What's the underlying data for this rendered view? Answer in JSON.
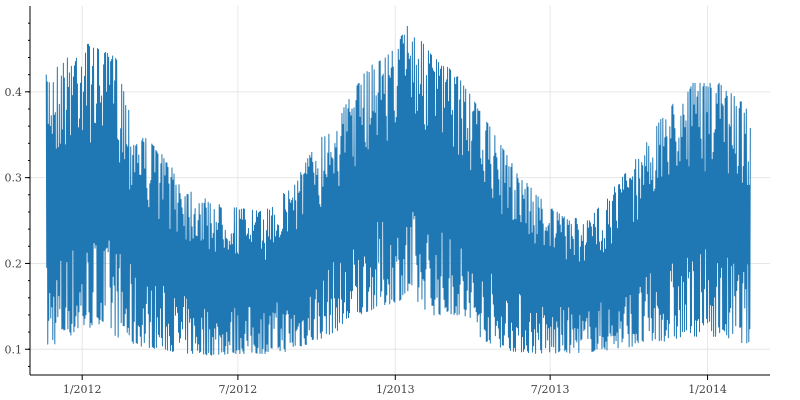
{
  "chart_data": {
    "type": "line",
    "title": "",
    "xlabel": "",
    "ylabel": "",
    "x_start": "2011-11-20",
    "x_end": "2014-02-20",
    "xlim": [
      "2011-11-01",
      "2014-03-15"
    ],
    "ylim": [
      0.07,
      0.5
    ],
    "x_ticks": [
      {
        "date": "2012-01-01",
        "label": "1/2012"
      },
      {
        "date": "2012-07-01",
        "label": "7/2012"
      },
      {
        "date": "2013-01-01",
        "label": "1/2013"
      },
      {
        "date": "2013-07-01",
        "label": "7/2013"
      },
      {
        "date": "2014-01-01",
        "label": "1/2014"
      }
    ],
    "y_ticks": [
      {
        "value": 0.1,
        "label": "0.1"
      },
      {
        "value": 0.2,
        "label": "0.2"
      },
      {
        "value": 0.3,
        "label": "0.3"
      },
      {
        "value": 0.4,
        "label": "0.4"
      }
    ],
    "grid": true,
    "legend": "none",
    "series": [
      {
        "color": "#1f77b4",
        "envelope_upper": [
          {
            "date": "2011-11-20",
            "value": 0.42
          },
          {
            "date": "2011-12-15",
            "value": 0.44
          },
          {
            "date": "2012-01-01",
            "value": 0.46
          },
          {
            "date": "2012-01-20",
            "value": 0.45
          },
          {
            "date": "2012-02-10",
            "value": 0.44
          },
          {
            "date": "2012-03-01",
            "value": 0.36
          },
          {
            "date": "2012-04-01",
            "value": 0.33
          },
          {
            "date": "2012-05-01",
            "value": 0.29
          },
          {
            "date": "2012-06-01",
            "value": 0.27
          },
          {
            "date": "2012-07-01",
            "value": 0.265
          },
          {
            "date": "2012-08-01",
            "value": 0.26
          },
          {
            "date": "2012-09-01",
            "value": 0.29
          },
          {
            "date": "2012-10-01",
            "value": 0.34
          },
          {
            "date": "2012-11-01",
            "value": 0.38
          },
          {
            "date": "2012-12-01",
            "value": 0.43
          },
          {
            "date": "2013-01-01",
            "value": 0.45
          },
          {
            "date": "2013-01-15",
            "value": 0.48
          },
          {
            "date": "2013-02-15",
            "value": 0.44
          },
          {
            "date": "2013-03-15",
            "value": 0.42
          },
          {
            "date": "2013-04-15",
            "value": 0.37
          },
          {
            "date": "2013-05-15",
            "value": 0.32
          },
          {
            "date": "2013-06-15",
            "value": 0.28
          },
          {
            "date": "2013-07-15",
            "value": 0.255
          },
          {
            "date": "2013-08-15",
            "value": 0.25
          },
          {
            "date": "2013-09-15",
            "value": 0.29
          },
          {
            "date": "2013-10-15",
            "value": 0.33
          },
          {
            "date": "2013-11-15",
            "value": 0.38
          },
          {
            "date": "2013-12-15",
            "value": 0.41
          },
          {
            "date": "2014-01-15",
            "value": 0.41
          },
          {
            "date": "2014-02-20",
            "value": 0.38
          }
        ],
        "envelope_lower": [
          {
            "date": "2011-11-20",
            "value": 0.1
          },
          {
            "date": "2011-12-15",
            "value": 0.115
          },
          {
            "date": "2012-01-01",
            "value": 0.12
          },
          {
            "date": "2012-01-20",
            "value": 0.13
          },
          {
            "date": "2012-02-10",
            "value": 0.115
          },
          {
            "date": "2012-03-01",
            "value": 0.105
          },
          {
            "date": "2012-04-01",
            "value": 0.1
          },
          {
            "date": "2012-05-01",
            "value": 0.095
          },
          {
            "date": "2012-06-01",
            "value": 0.093
          },
          {
            "date": "2012-07-01",
            "value": 0.095
          },
          {
            "date": "2012-08-01",
            "value": 0.095
          },
          {
            "date": "2012-09-01",
            "value": 0.098
          },
          {
            "date": "2012-10-01",
            "value": 0.11
          },
          {
            "date": "2012-11-01",
            "value": 0.125
          },
          {
            "date": "2012-12-01",
            "value": 0.145
          },
          {
            "date": "2013-01-01",
            "value": 0.155
          },
          {
            "date": "2013-01-15",
            "value": 0.16
          },
          {
            "date": "2013-02-15",
            "value": 0.14
          },
          {
            "date": "2013-03-15",
            "value": 0.14
          },
          {
            "date": "2013-04-15",
            "value": 0.11
          },
          {
            "date": "2013-05-15",
            "value": 0.098
          },
          {
            "date": "2013-06-15",
            "value": 0.095
          },
          {
            "date": "2013-07-15",
            "value": 0.095
          },
          {
            "date": "2013-08-15",
            "value": 0.097
          },
          {
            "date": "2013-09-15",
            "value": 0.1
          },
          {
            "date": "2013-10-15",
            "value": 0.105
          },
          {
            "date": "2013-11-15",
            "value": 0.11
          },
          {
            "date": "2013-12-15",
            "value": 0.115
          },
          {
            "date": "2014-01-15",
            "value": 0.115
          },
          {
            "date": "2014-02-20",
            "value": 0.105
          }
        ]
      }
    ]
  }
}
